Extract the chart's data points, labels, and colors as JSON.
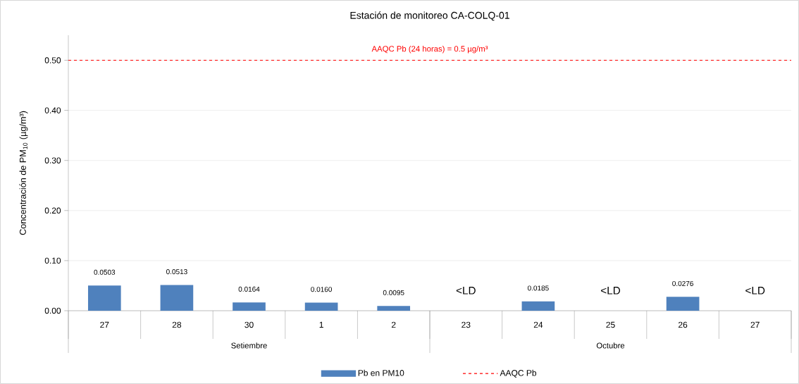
{
  "chart_data": {
    "type": "bar",
    "title": "Estación de monitoreo CA-COLQ-01",
    "ylabel": "Concentración de PM$_{10}$ (µg/m³)",
    "categories": [
      "27",
      "28",
      "30",
      "1",
      "2",
      "23",
      "24",
      "25",
      "26",
      "27"
    ],
    "series": [
      {
        "name": "Pb en PM10",
        "color": "#4f81bd",
        "values": [
          0.0503,
          0.0513,
          0.0164,
          0.016,
          0.0095,
          null,
          0.0185,
          null,
          0.0276,
          null
        ],
        "value_labels": [
          "0.0503",
          "0.0513",
          "0.0164",
          "0.0160",
          "0.0095",
          "<LD",
          "0.0185",
          "<LD",
          "0.0276",
          "<LD"
        ]
      }
    ],
    "ylim": [
      0,
      0.55
    ],
    "yticks": [
      {
        "value": 0,
        "label": "0.00"
      },
      {
        "value": 0.1,
        "label": "0.10"
      },
      {
        "value": 0.2,
        "label": "0.20"
      },
      {
        "value": 0.3,
        "label": "0.30"
      },
      {
        "value": 0.4,
        "label": "0.40"
      },
      {
        "value": 0.5,
        "label": "0.50"
      }
    ],
    "grid": "y",
    "legend": "bottom",
    "ref_lines": [
      {
        "axis": "y",
        "value": 0.5,
        "label": "AAQC Pb",
        "color": "#ff0000",
        "line_style": "dashed"
      }
    ],
    "annotations": [
      {
        "text": "AAQC Pb (24 horas) = 0.5 µg/m³",
        "y": 0.5
      },
      "Setiembre",
      "Octubre"
    ]
  }
}
